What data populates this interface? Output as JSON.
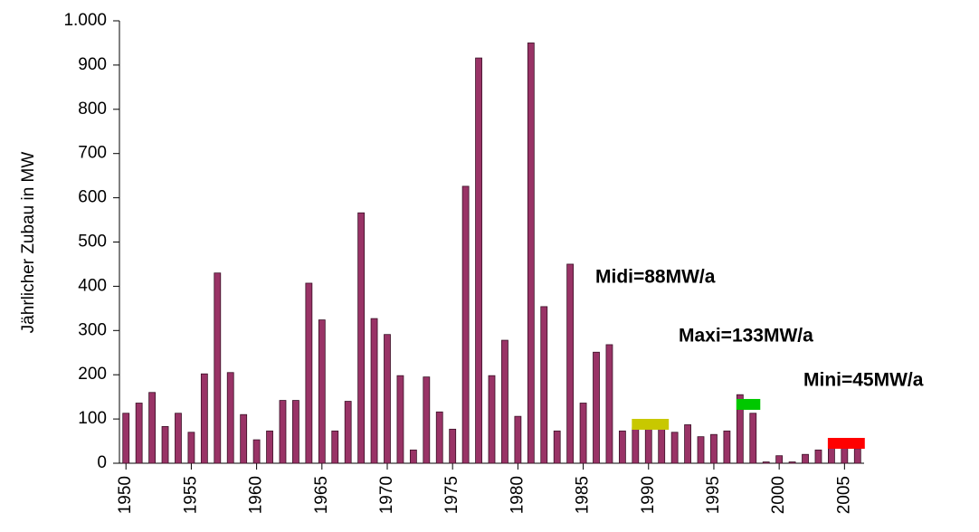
{
  "chart_data": {
    "type": "bar",
    "y_label": "Jährlicher Zubau in MW",
    "categories": [
      "1950",
      null,
      null,
      null,
      null,
      "1955",
      null,
      null,
      null,
      null,
      "1960",
      null,
      null,
      null,
      null,
      "1965",
      null,
      null,
      null,
      null,
      "1970",
      null,
      null,
      null,
      null,
      "1975",
      null,
      null,
      null,
      null,
      "1980",
      null,
      null,
      null,
      null,
      "1985",
      null,
      null,
      null,
      null,
      "1990",
      null,
      null,
      null,
      null,
      "1995",
      null,
      null,
      null,
      null,
      "2000",
      null,
      null,
      null,
      null,
      "2005",
      null
    ],
    "values": [
      113,
      136,
      160,
      83,
      113,
      70,
      202,
      430,
      205,
      110,
      53,
      73,
      142,
      142,
      407,
      324,
      73,
      140,
      566,
      327,
      291,
      198,
      30,
      195,
      116,
      77,
      626,
      916,
      198,
      278,
      106,
      950,
      354,
      73,
      450,
      136,
      251,
      268,
      73,
      80,
      88,
      90,
      70,
      87,
      60,
      65,
      73,
      155,
      113,
      3,
      17,
      3,
      20,
      30,
      48,
      48,
      33
    ],
    "color": "#993366",
    "ylim": [
      0,
      1000
    ],
    "yticks": [
      0,
      100,
      200,
      300,
      400,
      500,
      600,
      700,
      800,
      900,
      {
        "value": 1000,
        "label": "1.000"
      }
    ],
    "averages": [
      {
        "label": "Midi=88MW/a",
        "value": 88,
        "from": 1989,
        "to": 1991,
        "color": "#c8c800"
      },
      {
        "label": "Maxi=133MW/a",
        "value": 133,
        "from": 1997,
        "to": 1998,
        "color": "#00c800"
      },
      {
        "label": "Mini=45MW/a",
        "value": 45,
        "from": 2004,
        "to": 2006,
        "color": "#ff0000"
      }
    ]
  }
}
